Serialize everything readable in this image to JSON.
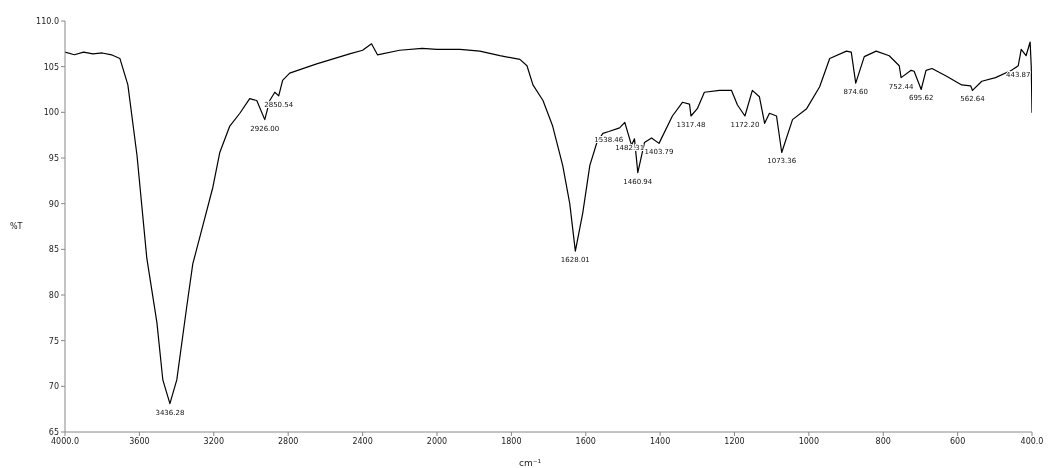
{
  "chart_data": [
    {
      "type": "line",
      "ylabel": "%T",
      "xlim": [
        4000,
        2000
      ],
      "ylim": [
        65,
        110
      ],
      "xticks": [
        {
          "value": 4000,
          "label": "4000.0"
        },
        3600,
        3200,
        2800,
        2400
      ],
      "yticks": [
        65,
        70,
        75,
        80,
        85,
        90,
        95,
        100,
        105,
        {
          "value": 110,
          "label": "110.0"
        }
      ],
      "grid": false,
      "legend": false,
      "marker": "none",
      "line_style": "solid",
      "series": [
        {
          "color": "#000000",
          "x": [
            4000,
            3950,
            3900,
            3850,
            3800,
            3750,
            3705,
            3662,
            3613,
            3560,
            3506,
            3474,
            3436,
            3399,
            3345,
            3313,
            3259,
            3205,
            3168,
            3114,
            3060,
            3007,
            2969,
            2926,
            2899,
            2872,
            2851,
            2830,
            2792,
            2647,
            2470,
            2400,
            2352,
            2320,
            2201,
            2080,
            2000
          ],
          "values": [
            106.6,
            106.3,
            106.6,
            106.4,
            106.5,
            106.3,
            105.9,
            103.0,
            95.3,
            84.0,
            77.0,
            70.7,
            68.1,
            70.7,
            78.8,
            83.4,
            87.6,
            91.8,
            95.6,
            98.5,
            99.9,
            101.5,
            101.3,
            99.2,
            101.3,
            102.2,
            101.8,
            103.5,
            104.3,
            105.3,
            106.4,
            106.8,
            107.5,
            106.3,
            106.8,
            107.0,
            106.9
          ]
        }
      ],
      "annotations": [
        {
          "text": "3436.28",
          "x": 3436,
          "y": 68.1
        },
        {
          "text": "2926.00",
          "x": 2926,
          "y": 99.2
        },
        {
          "text": "2850.54",
          "x": 2851,
          "y": 101.8
        }
      ]
    },
    {
      "type": "line",
      "xlabel": "cm⁻¹",
      "xlim": [
        2000,
        400
      ],
      "ylim": [
        65,
        110
      ],
      "xticks": [
        2000,
        1800,
        1600,
        1400,
        1200,
        1000,
        800,
        600,
        {
          "value": 400,
          "label": "400.0"
        }
      ],
      "yticks": [
        65,
        70,
        75,
        80,
        85,
        90,
        95,
        100,
        105,
        110
      ],
      "tick_labels": "x",
      "grid": false,
      "legend": false,
      "marker": "none",
      "line_style": "solid",
      "series": [
        {
          "color": "#000000",
          "x": [
            2000,
            1938,
            1885,
            1831,
            1777,
            1758,
            1742,
            1715,
            1689,
            1662,
            1643,
            1628,
            1608,
            1589,
            1570,
            1554,
            1538,
            1509,
            1495,
            1482,
            1477,
            1469,
            1460,
            1442,
            1423,
            1403,
            1367,
            1340,
            1321,
            1317,
            1300,
            1281,
            1240,
            1208,
            1192,
            1172,
            1152,
            1133,
            1119,
            1106,
            1087,
            1073,
            1044,
            1006,
            971,
            944,
            899,
            886,
            874,
            851,
            819,
            784,
            757,
            752,
            725,
            717,
            698,
            685,
            669,
            632,
            589,
            565,
            560,
            535,
            498,
            455,
            437,
            429,
            416,
            405,
            402,
            400
          ],
          "values": [
            106.9,
            106.9,
            106.7,
            106.2,
            105.8,
            105.1,
            103.0,
            101.3,
            98.5,
            94.2,
            90.0,
            84.8,
            89.0,
            94.2,
            96.7,
            97.7,
            97.9,
            98.3,
            98.9,
            97.1,
            96.4,
            97.1,
            93.4,
            96.7,
            97.2,
            96.6,
            99.6,
            101.1,
            100.9,
            99.6,
            100.4,
            102.2,
            102.4,
            102.4,
            100.8,
            99.6,
            102.4,
            101.7,
            98.8,
            99.9,
            99.6,
            95.6,
            99.2,
            100.4,
            102.8,
            105.9,
            106.7,
            106.6,
            103.2,
            106.1,
            106.7,
            106.2,
            105.1,
            103.8,
            104.6,
            104.5,
            102.5,
            104.6,
            104.8,
            104.0,
            103.0,
            102.9,
            102.4,
            103.4,
            103.8,
            104.6,
            105.1,
            106.9,
            106.2,
            107.7,
            105.0,
            100.0
          ]
        }
      ],
      "annotations": [
        {
          "text": "1628.01",
          "x": 1628,
          "y": 84.8
        },
        {
          "text": "1538.46",
          "x": 1538,
          "y": 97.9
        },
        {
          "text": "1482.31",
          "x": 1482,
          "y": 97.1
        },
        {
          "text": "1460.94",
          "x": 1460,
          "y": 93.4
        },
        {
          "text": "1403.79",
          "x": 1403,
          "y": 96.6
        },
        {
          "text": "1317.48",
          "x": 1317,
          "y": 99.6
        },
        {
          "text": "1172.20",
          "x": 1172,
          "y": 99.6
        },
        {
          "text": "1073.36",
          "x": 1073,
          "y": 95.6
        },
        {
          "text": "874.60",
          "x": 874,
          "y": 103.2
        },
        {
          "text": "752.44",
          "x": 752,
          "y": 103.8
        },
        {
          "text": "695.62",
          "x": 698,
          "y": 102.5
        },
        {
          "text": "562.64",
          "x": 560,
          "y": 102.4
        },
        {
          "text": "443.87",
          "x": 437,
          "y": 105.1
        }
      ]
    }
  ]
}
